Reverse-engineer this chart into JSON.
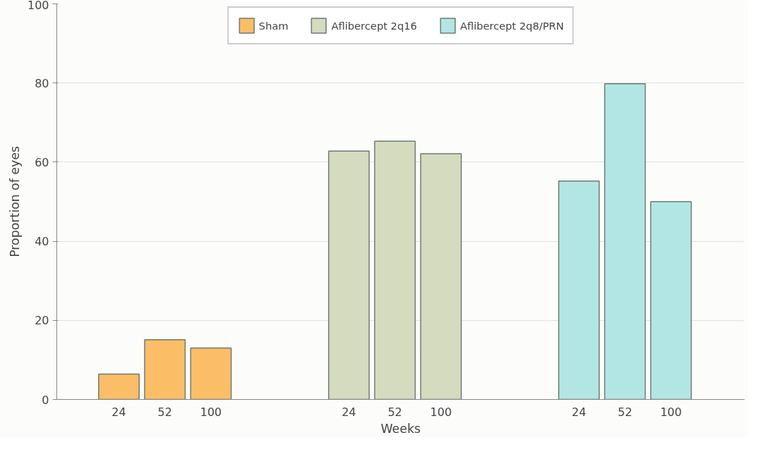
{
  "chart_data": {
    "type": "bar",
    "xlabel": "Weeks",
    "ylabel": "Proportion of eyes",
    "categories": [
      "24",
      "52",
      "100",
      null,
      null,
      "24",
      "52",
      "100",
      null,
      null,
      "24",
      "52",
      "100"
    ],
    "series": [
      {
        "name": "Sham",
        "color": "#fbbe66",
        "values": [
          6.4,
          15.1,
          13.0,
          null,
          null,
          null,
          null,
          null,
          null,
          null,
          null,
          null,
          null
        ]
      },
      {
        "name": "Aflibercept 2q16",
        "color": "#d4dbbf",
        "values": [
          null,
          null,
          null,
          null,
          null,
          62.8,
          65.3,
          62.1,
          null,
          null,
          null,
          null,
          null
        ]
      },
      {
        "name": "Aflibercept 2q8/PRN",
        "color": "#b2e6e4",
        "values": [
          null,
          null,
          null,
          null,
          null,
          null,
          null,
          null,
          null,
          null,
          55.2,
          79.8,
          50.0
        ]
      }
    ],
    "ylim": [
      0,
      100
    ],
    "yticks": [
      0,
      20,
      40,
      60,
      80,
      100
    ],
    "grid": "y",
    "legend": "top"
  }
}
